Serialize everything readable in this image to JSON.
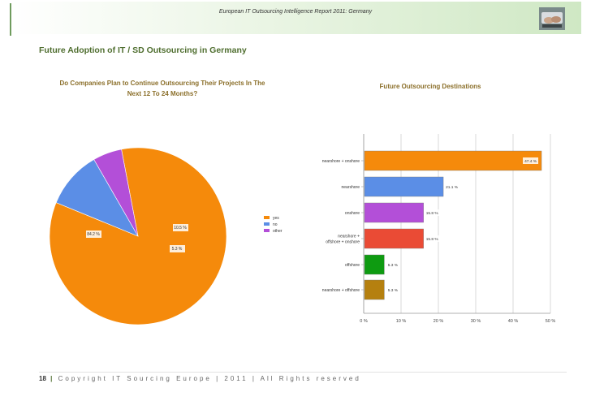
{
  "header": {
    "title": "European IT Outsourcing Intelligence Report 2011: Germany"
  },
  "page_title": "Future Adoption of IT / SD Outsourcing in Germany",
  "left_chart_title_line1": "Do Companies Plan to Continue Outsourcing Their Projects In The",
  "left_chart_title_line2": "Next 12 To 24 Months?",
  "right_chart_title": "Future Outsourcing Destinations",
  "footer": {
    "page_number": "18",
    "separator": "|",
    "text": "Copyright IT Sourcing Europe | 2011 | All Rights reserved"
  },
  "colors": {
    "accent": "#4f6e2f",
    "orange": "#f58a0b",
    "blue": "#5b8ee6",
    "purple": "#b34fd8",
    "red": "#ea4b35",
    "green": "#0e9b11",
    "brown": "#b5800f"
  },
  "logo_icon": "hands-laptop-icon",
  "chart_data": [
    {
      "type": "pie",
      "labels": [
        "yes",
        "no",
        "other"
      ],
      "values": [
        84.2,
        10.5,
        5.3
      ],
      "value_labels": [
        "84.2 %",
        "10.5 %",
        "5.3 %"
      ],
      "colors": [
        "#f58a0b",
        "#5b8ee6",
        "#b34fd8"
      ],
      "legend": "right"
    },
    {
      "type": "bar",
      "orientation": "horizontal",
      "categories": [
        "nearshore + onshore",
        "nearshore",
        "onshore",
        "nearshore + offshore + onshore",
        "offshore",
        "nearshore + offshore"
      ],
      "category_lines": [
        [
          "nearshore + onshore"
        ],
        [
          "nearshore"
        ],
        [
          "onshore"
        ],
        [
          "nearshore +",
          "offshore + onshore"
        ],
        [
          "offshore"
        ],
        [
          "nearshore + offshore"
        ]
      ],
      "values": [
        47.4,
        21.1,
        15.8,
        15.8,
        5.3,
        5.3
      ],
      "value_labels": [
        "47.4 %",
        "21.1 %",
        "15.8 %",
        "15.8 %",
        "5.3 %",
        "5.3 %"
      ],
      "colors": [
        "#f58a0b",
        "#5b8ee6",
        "#b34fd8",
        "#ea4b35",
        "#0e9b11",
        "#b5800f"
      ],
      "xlim": [
        0,
        50
      ],
      "xticks": [
        0,
        10,
        20,
        30,
        40,
        50
      ],
      "xtick_labels": [
        "0 %",
        "10 %",
        "20 %",
        "30 %",
        "40 %",
        "50 %"
      ],
      "grid": true
    }
  ]
}
